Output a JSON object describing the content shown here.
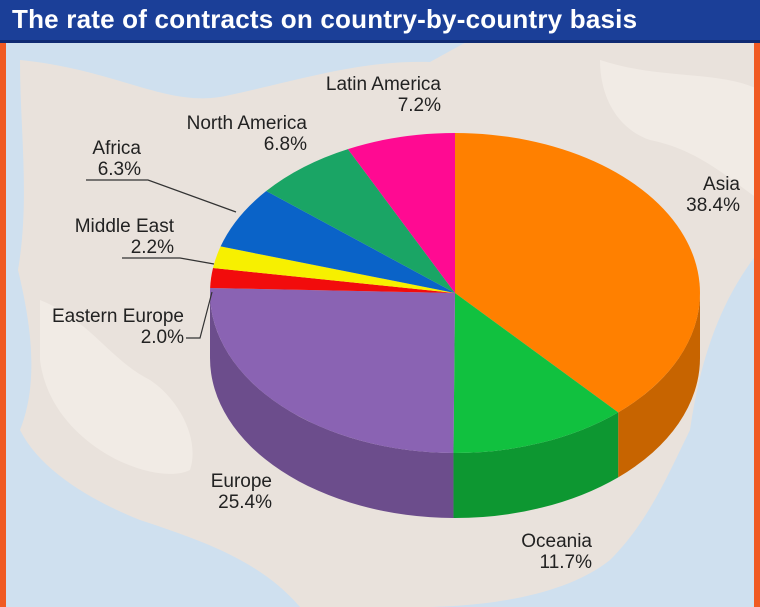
{
  "title": "The rate of contracts on country-by-country basis",
  "colors": {
    "frame_accent": "#f05a22",
    "title_bar": "#1b3f98"
  },
  "chart_data": {
    "type": "pie",
    "title": "The rate of contracts on country-by-country basis",
    "slices": [
      {
        "label": "Asia",
        "value": 38.4,
        "value_text": "38.4%",
        "color": "#ff8000"
      },
      {
        "label": "Oceania",
        "value": 11.7,
        "value_text": "11.7%",
        "color": "#11c13f"
      },
      {
        "label": "Europe",
        "value": 25.4,
        "value_text": "25.4%",
        "color": "#8a63b3"
      },
      {
        "label": "Eastern Europe",
        "value": 2.0,
        "value_text": "2.0%",
        "color": "#f20c0c"
      },
      {
        "label": "Middle East",
        "value": 2.2,
        "value_text": "2.2%",
        "color": "#f7f000"
      },
      {
        "label": "Africa",
        "value": 6.3,
        "value_text": "6.3%",
        "color": "#0a63c8"
      },
      {
        "label": "North America",
        "value": 6.8,
        "value_text": "6.8%",
        "color": "#1aa565"
      },
      {
        "label": "Latin America",
        "value": 7.2,
        "value_text": "7.2%",
        "color": "#ff0a92"
      }
    ]
  }
}
